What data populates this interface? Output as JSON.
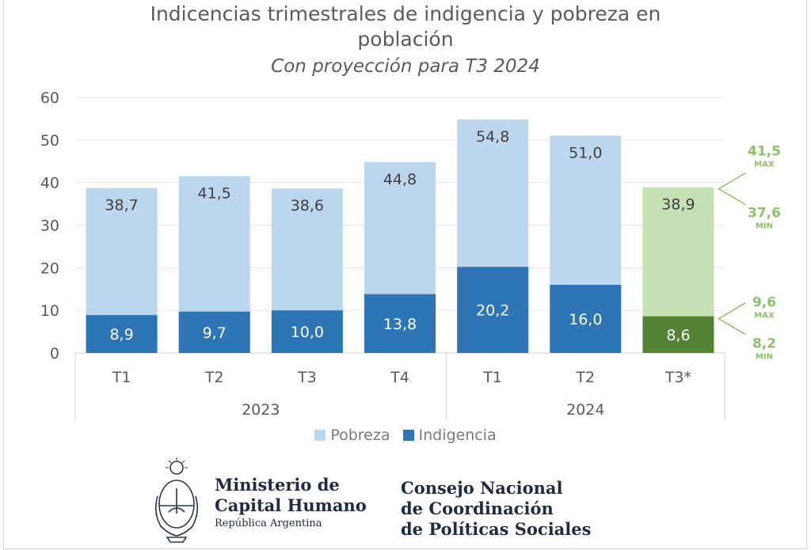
{
  "chart_data": {
    "type": "bar",
    "stacked": false,
    "title_lines": [
      "Indicencias trimestrales de indigencia y pobreza en",
      "población"
    ],
    "subtitle": "Con proyección para T3 2024",
    "ylim": [
      0,
      60
    ],
    "yticks": [
      "0",
      "10",
      "20",
      "30",
      "40",
      "50",
      "60"
    ],
    "grid": true,
    "categories": [
      "T1",
      "T2",
      "T3",
      "T4",
      "T1",
      "T2",
      "T3*"
    ],
    "groups": [
      {
        "label": "2023",
        "count": 4
      },
      {
        "label": "2024",
        "count": 3
      }
    ],
    "series": [
      {
        "name": "Pobreza",
        "values": [
          38.7,
          41.5,
          38.6,
          44.8,
          54.8,
          51.0,
          38.9
        ],
        "labels": [
          "38,7",
          "41,5",
          "38,6",
          "44,8",
          "54,8",
          "51,0",
          "38,9"
        ]
      },
      {
        "name": "Indigencia",
        "values": [
          8.9,
          9.7,
          10.0,
          13.8,
          20.2,
          16.0,
          8.6
        ],
        "labels": [
          "8,9",
          "9,7",
          "10,0",
          "13,8",
          "20,2",
          "16,0",
          "8,6"
        ]
      }
    ],
    "projection_index": 6,
    "projection_ranges": [
      {
        "series": "Pobreza",
        "max": "41,5",
        "max_label": "MAX",
        "min": "37,6",
        "min_label": "MIN"
      },
      {
        "series": "Indigencia",
        "max": "9,6",
        "max_label": "MAX",
        "min": "8,2",
        "min_label": "MIN"
      }
    ],
    "colors": {
      "pobreza": "#bcd6ee",
      "indigencia": "#2e75b6",
      "pobreza_projection": "#c5e0b4",
      "indigencia_projection": "#548235",
      "range_text": "#8cc16a",
      "grid": "#e3e3e3",
      "axis_text": "#595959",
      "label_dark": "#404040",
      "label_light": "#ffffff"
    },
    "legend_position": "bottom"
  },
  "footer": {
    "ministry_lines": [
      "Ministerio de",
      "Capital Humano"
    ],
    "ministry_country": "República Argentina",
    "council_lines": [
      "Consejo Nacional",
      "de Coordinación",
      "de Políticas Sociales"
    ],
    "seal_icon": "argentina-coat-of-arms-icon"
  }
}
